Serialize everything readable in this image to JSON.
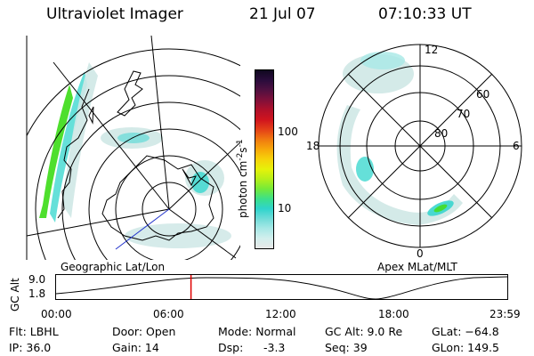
{
  "header": {
    "title": "Ultraviolet Imager",
    "date": "21 Jul 07",
    "time": "07:10:33 UT"
  },
  "colorbar": {
    "label_text": "photon cm",
    "label_exp1": "-2",
    "label_mid": "s",
    "label_exp2": "-1",
    "ticks": [
      "100",
      "10"
    ],
    "colors": [
      "#e8e8e8",
      "#d2efed",
      "#a8e8e6",
      "#6fdcd8",
      "#2fd4cc",
      "#3ce08a",
      "#74ea3a",
      "#b6ef1a",
      "#e6f20a",
      "#f6d30a",
      "#f7a80a",
      "#f07a10",
      "#e44018",
      "#d0141e",
      "#b0102a",
      "#80103a",
      "#501040",
      "#2a0c3c",
      "#100820"
    ]
  },
  "panels": {
    "left_caption": "Geographic Lat/Lon",
    "right_caption": "Apex MLat/MLT",
    "mlt_labels": {
      "top": "12",
      "left": "18",
      "right": "6",
      "bottom": "0"
    },
    "mlat_labels": [
      "60",
      "70",
      "80"
    ]
  },
  "altitude_plot": {
    "ylabel": "GC Alt",
    "yticks": [
      "9.0",
      "1.8"
    ],
    "xticks": [
      "00:00",
      "06:00",
      "12:00",
      "18:00",
      "23:59"
    ],
    "current_time_fraction": 0.299
  },
  "info": {
    "flt": "Flt: LBHL",
    "ip": "IP: 36.0",
    "door": "Door: Open",
    "gain": "Gain: 14",
    "mode": "Mode: Normal",
    "dsp_label": "Dsp:",
    "dsp_value": "-3.3",
    "gcalt": "GC Alt: 9.0 Re",
    "seq": "Seq: 39",
    "glat": "GLat: −64.8",
    "glon": "GLon: 149.5"
  },
  "colors": {
    "text": "#000000",
    "marker": "#e00000",
    "vector": "#2233cc",
    "aurora_light": "#cfe8e6",
    "aurora_mid": "#3fd8d0",
    "aurora_green": "#44dd22"
  }
}
